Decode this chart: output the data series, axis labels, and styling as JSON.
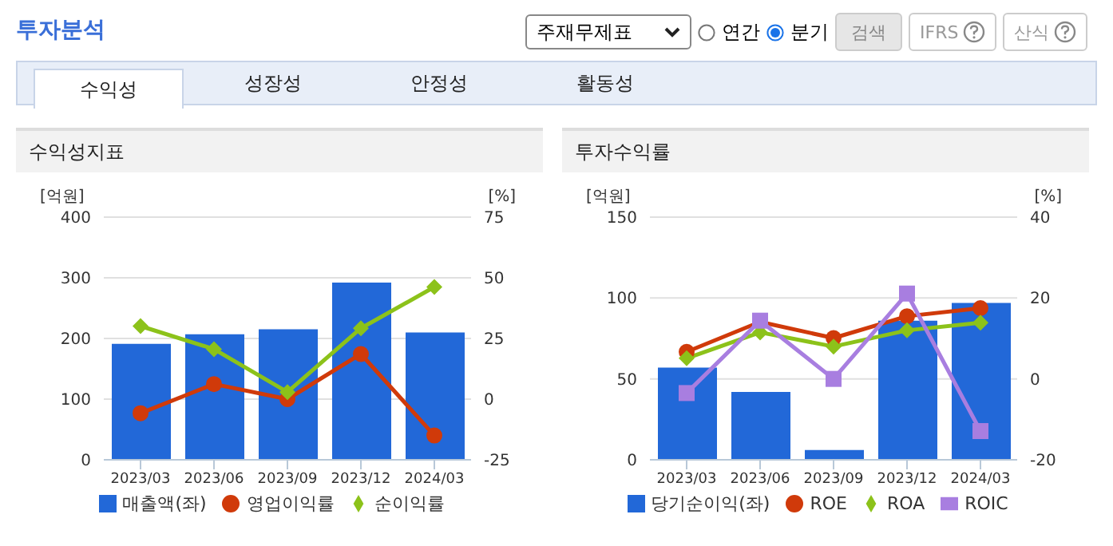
{
  "chart_data": [
    {
      "type": "bar",
      "title": "수익성지표",
      "ylabel": "[억원]",
      "y2label": "[%]",
      "annotations": [
        "투자분석",
        "주재무제표",
        "연간",
        "분기",
        "검색",
        "IFRS",
        "산식",
        "수익성",
        "성장성",
        "안정성",
        "활동성"
      ],
      "categories": [
        "2023/03",
        "2023/06",
        "2023/09",
        "2023/12",
        "2024/03"
      ],
      "series": [
        {
          "name": "매출액(좌)",
          "color": "#2268d8",
          "values": [
            191,
            207,
            215,
            292,
            210
          ]
        },
        {
          "name": "영업이익률",
          "type": "line",
          "axis": "y2",
          "marker": "circle",
          "color": "#d03a0a",
          "values": [
            -5.8,
            6.2,
            0,
            18.6,
            -15
          ]
        },
        {
          "name": "순이익률",
          "type": "line",
          "axis": "y2",
          "marker": "diamond",
          "color": "#8cc21a",
          "values": [
            30.1,
            20.6,
            2.9,
            29.2,
            46.2
          ]
        }
      ],
      "ylim": [
        0,
        400
      ],
      "yticks": [
        0,
        100,
        200,
        300,
        400
      ],
      "y2lim": [
        -25,
        75
      ],
      "y2ticks": [
        -25,
        0,
        25,
        50,
        75
      ],
      "grid": "y",
      "legend": "bottom"
    },
    {
      "type": "bar",
      "title": "투자수익률",
      "ylabel": "[억원]",
      "y2label": "[%]",
      "categories": [
        "2023/03",
        "2023/06",
        "2023/09",
        "2023/12",
        "2024/03"
      ],
      "series": [
        {
          "name": "당기순이익(좌)",
          "color": "#2268d8",
          "values": [
            57,
            42,
            6,
            86,
            97
          ]
        },
        {
          "name": "ROE",
          "type": "line",
          "axis": "y2",
          "marker": "circle",
          "color": "#d03a0a",
          "values": [
            6.7,
            14.1,
            10.1,
            15.5,
            17.5
          ]
        },
        {
          "name": "ROA",
          "type": "line",
          "axis": "y2",
          "marker": "diamond",
          "color": "#8cc21a",
          "values": [
            5.1,
            11.5,
            8,
            12,
            13.9
          ]
        },
        {
          "name": "ROIC",
          "type": "line",
          "axis": "y2",
          "marker": "square",
          "color": "#a87ee0",
          "values": [
            -3.5,
            14.4,
            0,
            21.1,
            -12.9
          ]
        }
      ],
      "ylim": [
        0,
        150
      ],
      "yticks": [
        0,
        50,
        100,
        150
      ],
      "y2lim": [
        -20,
        40
      ],
      "y2ticks": [
        -20,
        0,
        20,
        40
      ],
      "grid": "y",
      "legend": "bottom"
    }
  ]
}
